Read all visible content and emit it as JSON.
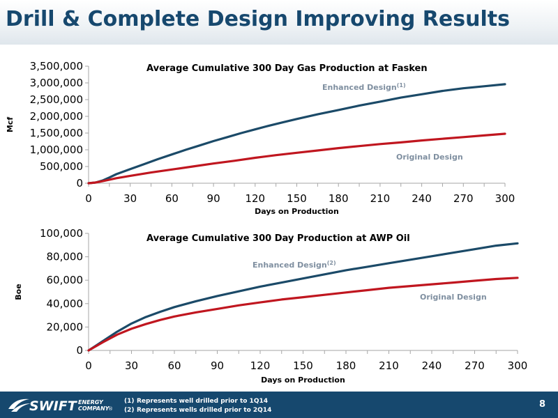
{
  "slide": {
    "title": "Drill & Complete Design Improving Results",
    "page_number": "8"
  },
  "footer": {
    "logo_text_main": "SWIFT",
    "logo_text_sub1": "ENERGY",
    "logo_text_sub2": "COMPANY",
    "logo_mark": "®",
    "footnotes": [
      {
        "mark": "(1)",
        "text": "Represents well drilled prior to 1Q14"
      },
      {
        "mark": "(2)",
        "text": "Represents wells drilled prior to 2Q14"
      }
    ]
  },
  "colors": {
    "title": "#16486e",
    "footer": "#16486e",
    "enhanced": "#1b4a68",
    "original": "#c0161f"
  },
  "chart_data": [
    {
      "type": "line",
      "title": "Average Cumulative 300 Day Gas Production at Fasken",
      "xlabel": "Days on Production",
      "ylabel": "Mcf",
      "xlim": [
        0,
        300
      ],
      "ylim": [
        0,
        3500000
      ],
      "xticks": [
        0,
        30,
        60,
        90,
        120,
        150,
        180,
        210,
        240,
        270,
        300
      ],
      "yticks": [
        0,
        500000,
        1000000,
        1500000,
        2000000,
        2500000,
        3000000,
        3500000
      ],
      "ytick_labels": [
        "0",
        "500,000",
        "1,000,000",
        "1,500,000",
        "2,000,000",
        "2,500,000",
        "3,000,000",
        "3,500,000"
      ],
      "grid": false,
      "series": [
        {
          "name": "Enhanced Design",
          "footnote": "(1)",
          "color": "#1b4a68",
          "x": [
            0,
            5,
            10,
            15,
            20,
            30,
            40,
            50,
            60,
            70,
            80,
            90,
            100,
            110,
            120,
            130,
            140,
            150,
            165,
            180,
            195,
            210,
            225,
            240,
            255,
            270,
            285,
            300
          ],
          "y": [
            0,
            20000,
            80000,
            170000,
            270000,
            420000,
            570000,
            720000,
            860000,
            1000000,
            1130000,
            1260000,
            1380000,
            1500000,
            1610000,
            1720000,
            1820000,
            1920000,
            2060000,
            2190000,
            2320000,
            2440000,
            2560000,
            2660000,
            2760000,
            2840000,
            2900000,
            2960000
          ]
        },
        {
          "name": "Original Design",
          "color": "#c0161f",
          "x": [
            0,
            5,
            10,
            20,
            30,
            45,
            60,
            75,
            90,
            105,
            120,
            135,
            150,
            165,
            180,
            195,
            210,
            225,
            240,
            255,
            270,
            285,
            300
          ],
          "y": [
            0,
            20000,
            60000,
            150000,
            220000,
            320000,
            410000,
            500000,
            590000,
            670000,
            760000,
            840000,
            910000,
            980000,
            1050000,
            1110000,
            1170000,
            1220000,
            1280000,
            1330000,
            1380000,
            1430000,
            1480000
          ]
        }
      ]
    },
    {
      "type": "line",
      "title": "Average Cumulative 300 Day Production at AWP Oil",
      "xlabel": "Days on Production",
      "ylabel": "Boe",
      "xlim": [
        0,
        300
      ],
      "ylim": [
        0,
        100000
      ],
      "xticks": [
        0,
        30,
        60,
        90,
        120,
        150,
        180,
        210,
        240,
        270,
        300
      ],
      "yticks": [
        0,
        20000,
        40000,
        60000,
        80000,
        100000
      ],
      "ytick_labels": [
        "0",
        "20,000",
        "40,000",
        "60,000",
        "80,000",
        "100,000"
      ],
      "grid": false,
      "series": [
        {
          "name": "Enhanced Design",
          "footnote": "(2)",
          "color": "#1b4a68",
          "x": [
            0,
            5,
            10,
            20,
            30,
            40,
            50,
            60,
            75,
            90,
            105,
            120,
            135,
            150,
            165,
            180,
            195,
            210,
            225,
            240,
            255,
            270,
            285,
            300
          ],
          "y": [
            0,
            4000,
            8000,
            16000,
            23000,
            28500,
            33000,
            37000,
            42000,
            46500,
            50500,
            54500,
            58000,
            61500,
            65000,
            68500,
            71500,
            74500,
            77500,
            80500,
            83500,
            86500,
            89500,
            91500
          ]
        },
        {
          "name": "Original Design",
          "color": "#c0161f",
          "x": [
            0,
            5,
            10,
            20,
            30,
            40,
            50,
            60,
            75,
            90,
            105,
            120,
            135,
            150,
            165,
            180,
            195,
            210,
            225,
            240,
            255,
            270,
            285,
            300
          ],
          "y": [
            0,
            3500,
            7000,
            13500,
            18500,
            22500,
            26000,
            29000,
            32500,
            35500,
            38500,
            41000,
            43500,
            45500,
            47500,
            49500,
            51500,
            53500,
            55000,
            56500,
            58000,
            59500,
            61000,
            62000
          ]
        }
      ]
    }
  ]
}
